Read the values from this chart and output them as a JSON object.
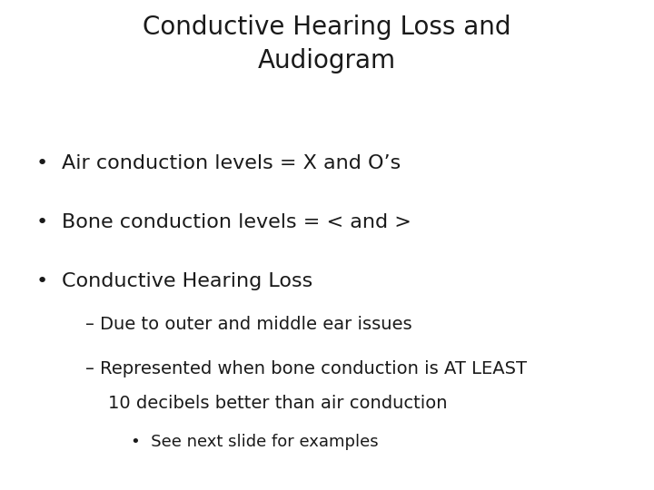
{
  "title_line1": "Conductive Hearing Loss and",
  "title_line2": "Audiogram",
  "title_fontsize": 20,
  "background_color": "#ffffff",
  "bullet1": "Air conduction levels = X and O’s",
  "bullet2": "Bone conduction levels = < and >",
  "bullet3": "Conductive Hearing Loss",
  "sub1": "– Due to outer and middle ear issues",
  "sub2_line1": "– Represented when bone conduction is AT LEAST",
  "sub2_line2": "   10 decibels better than air conduction",
  "subsub": "•  See next slide for examples",
  "bullet_fontsize": 16,
  "sub_fontsize": 14,
  "subsub_fontsize": 13,
  "text_color": "#1a1a1a",
  "bullet_symbol": "•",
  "font_family": "DejaVu Sans"
}
